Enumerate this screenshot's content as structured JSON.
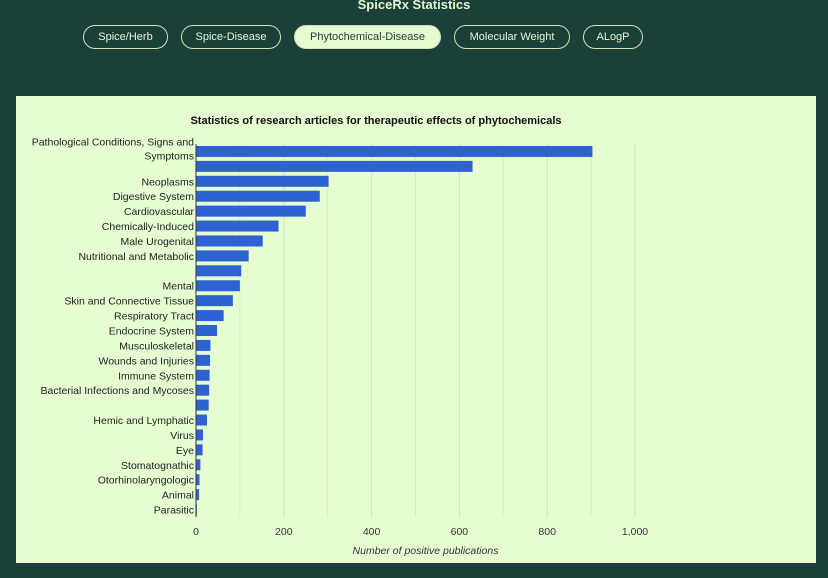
{
  "app_title": "SpiceRx Statistics",
  "tabs": [
    {
      "label": "Spice/Herb"
    },
    {
      "label": "Spice-Disease"
    },
    {
      "label": "Phytochemical-Disease",
      "active": true
    },
    {
      "label": "Molecular Weight"
    },
    {
      "label": "ALogP"
    }
  ],
  "colors": {
    "bar": "#2f62d1",
    "panel": "#e6fdd2",
    "background": "#1b403a"
  },
  "chart_data": {
    "type": "bar",
    "orientation": "horizontal",
    "title": "Statistics of research articles for therapeutic effects of phytochemicals",
    "xlabel": "Number of positive publications",
    "ylabel": "",
    "xlim": [
      0,
      1000
    ],
    "xticks": [
      "0",
      "200",
      "400",
      "600",
      "800",
      "1,000"
    ],
    "grid": true,
    "categories": [
      [
        "Pathological Conditions, Signs and",
        "Symptoms"
      ],
      [
        ""
      ],
      [
        "Neoplasms"
      ],
      [
        "Digestive System"
      ],
      [
        "Cardiovascular"
      ],
      [
        "Chemically-Induced"
      ],
      [
        "Male Urogenital"
      ],
      [
        "Nutritional and Metabolic"
      ],
      [
        ""
      ],
      [
        "Mental"
      ],
      [
        "Skin and Connective Tissue"
      ],
      [
        "Respiratory Tract"
      ],
      [
        "Endocrine System"
      ],
      [
        "Musculoskeletal"
      ],
      [
        "Wounds and Injuries"
      ],
      [
        "Immune System"
      ],
      [
        "Bacterial Infections and Mycoses"
      ],
      [
        ""
      ],
      [
        "Hemic and Lymphatic"
      ],
      [
        "Virus"
      ],
      [
        "Eye"
      ],
      [
        "Stomatognathic"
      ],
      [
        "Otorhinolaryngologic"
      ],
      [
        "Animal"
      ],
      [
        "Parasitic"
      ]
    ],
    "values": [
      903,
      630,
      302,
      282,
      250,
      188,
      152,
      120,
      103,
      100,
      84,
      63,
      48,
      33,
      32,
      31,
      30,
      29,
      25,
      16,
      15,
      10,
      8,
      7,
      2
    ]
  }
}
